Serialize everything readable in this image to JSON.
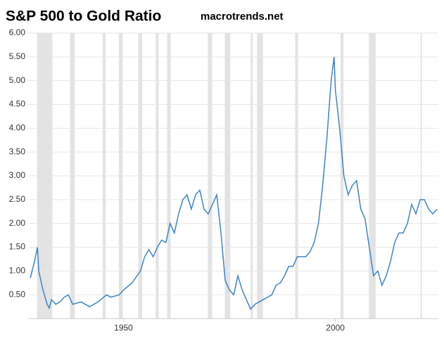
{
  "chart_data": {
    "type": "line",
    "title": "S&P 500 to Gold Ratio",
    "subtitle": "macrotrends.net",
    "x": [
      1928,
      1929,
      1929.7,
      1930,
      1931,
      1932,
      1932.5,
      1933,
      1934,
      1935,
      1936,
      1937,
      1938,
      1940,
      1942,
      1944,
      1946,
      1947,
      1949,
      1950,
      1952,
      1954,
      1955,
      1956,
      1957,
      1958,
      1959,
      1960,
      1961,
      1962,
      1963,
      1964,
      1965,
      1966,
      1967,
      1968,
      1969,
      1970,
      1971,
      1972,
      1973,
      1974,
      1975,
      1976,
      1977,
      1978,
      1979,
      1980,
      1981,
      1982,
      1983,
      1985,
      1986,
      1987,
      1988,
      1989,
      1990,
      1991,
      1992,
      1993,
      1994,
      1995,
      1996,
      1997,
      1998,
      1999,
      1999.7,
      2000,
      2001,
      2002,
      2003,
      2004,
      2005,
      2006,
      2007,
      2008,
      2009,
      2010,
      2011,
      2012,
      2013,
      2014,
      2015,
      2016,
      2017,
      2018,
      2019,
      2020,
      2021,
      2022,
      2023,
      2024
    ],
    "series": [
      {
        "name": "S&P 500 to Gold Ratio",
        "color": "#3d84c6",
        "values": [
          0.85,
          1.2,
          1.5,
          1.0,
          0.6,
          0.3,
          0.22,
          0.4,
          0.3,
          0.35,
          0.45,
          0.5,
          0.3,
          0.35,
          0.25,
          0.35,
          0.5,
          0.45,
          0.5,
          0.6,
          0.75,
          1.0,
          1.3,
          1.45,
          1.3,
          1.5,
          1.65,
          1.6,
          2.0,
          1.8,
          2.2,
          2.5,
          2.6,
          2.3,
          2.6,
          2.7,
          2.3,
          2.2,
          2.4,
          2.6,
          1.8,
          0.8,
          0.6,
          0.5,
          0.9,
          0.6,
          0.4,
          0.2,
          0.3,
          0.35,
          0.4,
          0.5,
          0.7,
          0.75,
          0.9,
          1.1,
          1.1,
          1.3,
          1.3,
          1.3,
          1.4,
          1.6,
          2.0,
          2.8,
          3.8,
          5.0,
          5.5,
          4.8,
          4.0,
          3.0,
          2.6,
          2.8,
          2.9,
          2.3,
          2.1,
          1.5,
          0.9,
          1.0,
          0.7,
          0.9,
          1.2,
          1.6,
          1.8,
          1.8,
          2.0,
          2.4,
          2.2,
          2.5,
          2.5,
          2.3,
          2.2,
          2.3
        ]
      }
    ],
    "recessions": [
      [
        1929.6,
        1933.2
      ],
      [
        1937.4,
        1938.5
      ],
      [
        1945.1,
        1945.8
      ],
      [
        1948.9,
        1949.8
      ],
      [
        1953.5,
        1954.4
      ],
      [
        1957.6,
        1958.3
      ],
      [
        1960.3,
        1961.1
      ],
      [
        1969.9,
        1970.9
      ],
      [
        1973.9,
        1975.2
      ],
      [
        1980,
        1980.5
      ],
      [
        1981.5,
        1982.9
      ],
      [
        1990.5,
        1991.2
      ],
      [
        2001.2,
        2001.9
      ],
      [
        2007.9,
        2009.5
      ],
      [
        2020.1,
        2020.4
      ]
    ],
    "xlim": [
      1927.5,
      2024.3
    ],
    "xticks": [
      1950,
      2000
    ],
    "ylim": [
      0,
      6
    ],
    "yticks": [
      {
        "value": 0.5,
        "label": "0.50"
      },
      {
        "value": 1,
        "label": "1.00"
      },
      {
        "value": 1.5,
        "label": "1.50"
      },
      {
        "value": 2,
        "label": "2.00"
      },
      {
        "value": 2.5,
        "label": "2.50"
      },
      {
        "value": 3,
        "label": "3.00"
      },
      {
        "value": 3.5,
        "label": "3.50"
      },
      {
        "value": 4,
        "label": "4.00"
      },
      {
        "value": 4.5,
        "label": "4.50"
      },
      {
        "value": 5,
        "label": "5.00"
      },
      {
        "value": 5.5,
        "label": "5.50"
      },
      {
        "value": 6,
        "label": "6.00"
      }
    ],
    "grid": true
  }
}
